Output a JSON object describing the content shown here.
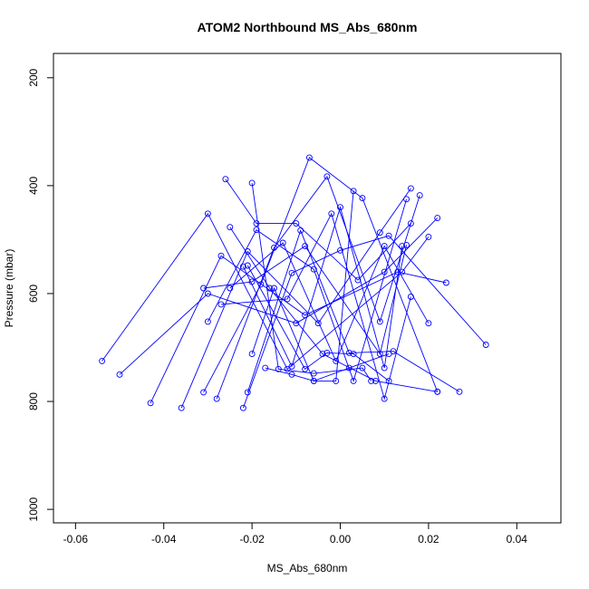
{
  "chart_data": {
    "type": "line",
    "title": "ATOM2 Northbound MS_Abs_680nm",
    "xlabel": "MS_Abs_680nm",
    "ylabel": "Pressure (mbar)",
    "xlim": [
      -0.065,
      0.05
    ],
    "ylim": [
      1025,
      155
    ],
    "y_reversed": true,
    "x_ticks": [
      -0.06,
      -0.04,
      -0.02,
      0.0,
      0.02,
      0.04
    ],
    "x_tick_labels": [
      "-0.06",
      "-0.04",
      "-0.02",
      "0.00",
      "0.02",
      "0.04"
    ],
    "y_ticks": [
      200,
      400,
      600,
      800,
      1000
    ],
    "y_tick_labels": [
      "200",
      "400",
      "600",
      "800",
      "1000"
    ],
    "grid": false,
    "legend": "none",
    "line_color": "#0000ff",
    "marker": "open-circle",
    "series": [
      {
        "x": [
          -0.054,
          -0.03,
          -0.012,
          0.014,
          0.02
        ],
        "y": [
          725,
          452,
          740,
          560,
          495
        ]
      },
      {
        "x": [
          -0.05,
          -0.03,
          -0.01,
          0.01,
          0.022
        ],
        "y": [
          750,
          600,
          655,
          560,
          460
        ]
      },
      {
        "x": [
          -0.043,
          -0.027,
          -0.008,
          0.013,
          0.024
        ],
        "y": [
          803,
          530,
          640,
          560,
          580
        ]
      },
      {
        "x": [
          -0.036,
          -0.021,
          -0.005,
          0.009,
          0.016
        ],
        "y": [
          812,
          522,
          655,
          487,
          405
        ]
      },
      {
        "x": [
          -0.031,
          -0.018,
          -0.007,
          0.005,
          0.022
        ],
        "y": [
          783,
          583,
          348,
          423,
          782
        ]
      },
      {
        "x": [
          -0.028,
          -0.015,
          -0.003,
          0.009,
          0.018
        ],
        "y": [
          795,
          515,
          383,
          652,
          418
        ]
      },
      {
        "x": [
          -0.022,
          -0.011,
          0.0,
          0.011,
          0.033
        ],
        "y": [
          812,
          562,
          520,
          493,
          695
        ]
      },
      {
        "x": [
          -0.021,
          -0.009,
          0.002,
          0.012,
          0.027
        ],
        "y": [
          783,
          483,
          710,
          707,
          782
        ]
      },
      {
        "x": [
          -0.025,
          -0.013,
          -0.001,
          0.01,
          0.02
        ],
        "y": [
          590,
          506,
          725,
          512,
          655
        ]
      },
      {
        "x": [
          -0.026,
          -0.019,
          -0.01,
          0.004,
          0.016
        ],
        "y": [
          388,
          470,
          470,
          575,
          470
        ]
      },
      {
        "x": [
          -0.031,
          -0.02,
          -0.008,
          0.009,
          0.015
        ],
        "y": [
          590,
          578,
          512,
          712,
          510
        ]
      },
      {
        "x": [
          -0.03,
          -0.019,
          -0.006,
          0.003,
          0.015
        ],
        "y": [
          652,
          482,
          555,
          762,
          425
        ]
      },
      {
        "x": [
          -0.025,
          -0.016,
          -0.004,
          0.008,
          0.022
        ],
        "y": [
          477,
          590,
          712,
          762,
          782
        ]
      },
      {
        "x": [
          -0.027,
          -0.012,
          -0.002,
          0.01,
          0.016
        ],
        "y": [
          620,
          610,
          452,
          795,
          606
        ]
      },
      {
        "x": [
          -0.022,
          -0.011,
          0.0,
          0.01,
          0.014
        ],
        "y": [
          550,
          735,
          440,
          738,
          512
        ]
      },
      {
        "x": [
          -0.021,
          -0.008,
          -0.003,
          0.003,
          0.011
        ],
        "y": [
          548,
          740,
          710,
          712,
          762
        ]
      },
      {
        "x": [
          -0.02,
          -0.015,
          -0.006,
          0.002,
          0.011
        ],
        "y": [
          712,
          590,
          762,
          738,
          712
        ]
      },
      {
        "x": [
          -0.02,
          -0.014,
          -0.006,
          0.005,
          0.007
        ],
        "y": [
          395,
          740,
          748,
          738,
          762
        ]
      },
      {
        "x": [
          -0.017,
          -0.011,
          -0.006,
          -0.001,
          0.003
        ],
        "y": [
          738,
          750,
          762,
          762,
          410
        ]
      }
    ]
  }
}
